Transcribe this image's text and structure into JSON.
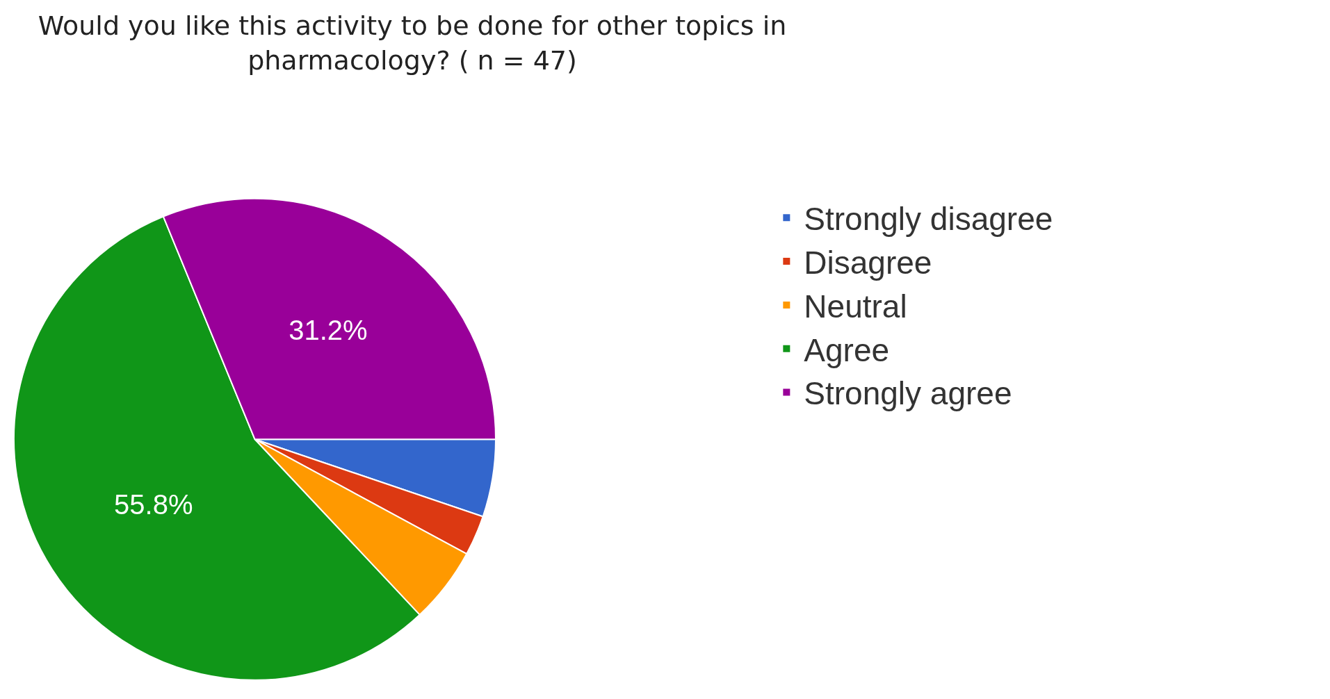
{
  "chart_data": {
    "type": "pie",
    "title": "Would you like this activity to be done for other topics in pharmacology? ( n = 47)",
    "categories": [
      "Strongly disagree",
      "Disagree",
      "Neutral",
      "Agree",
      "Strongly agree"
    ],
    "values": [
      5.2,
      2.7,
      5.1,
      55.8,
      31.2
    ],
    "colors": [
      "#3366cc",
      "#dc3912",
      "#ff9900",
      "#109618",
      "#990099"
    ],
    "value_labels": [
      null,
      null,
      null,
      "55.8%",
      "31.2%"
    ],
    "legend": "top right"
  }
}
